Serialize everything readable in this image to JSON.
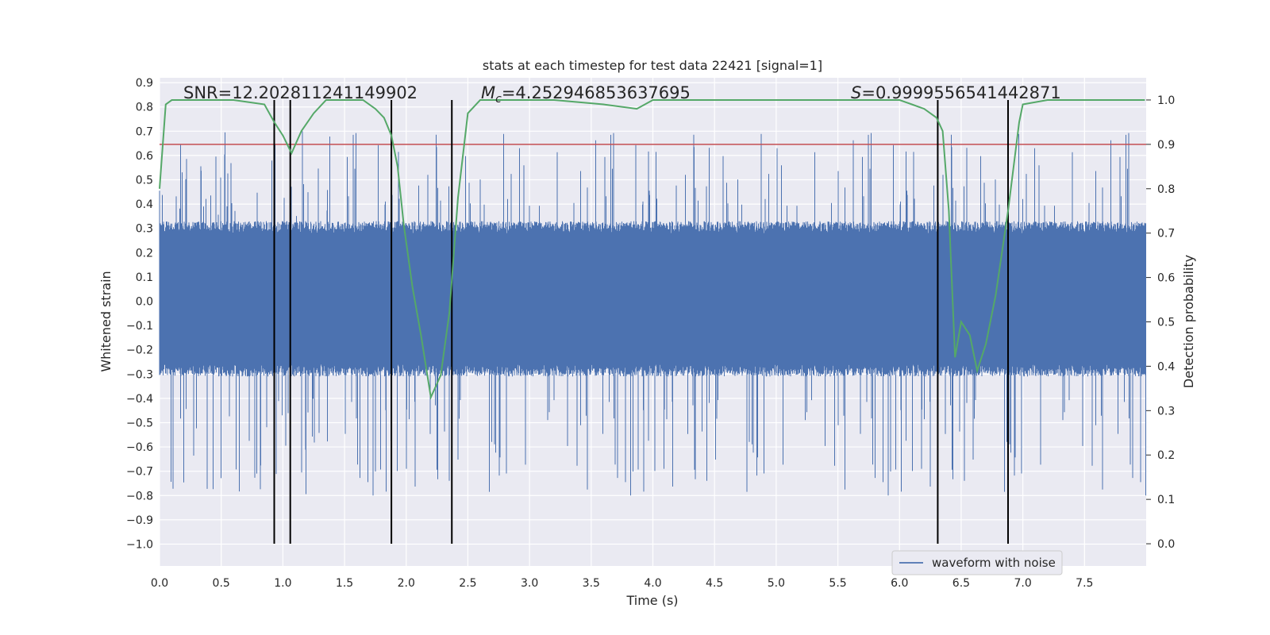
{
  "chart_data": {
    "type": "line",
    "title": "stats at each timestep for test data 22421 [signal=1]",
    "xlabel": "Time (s)",
    "ylabel": "Whitened strain",
    "y2label": "Detection probability",
    "xlim": [
      0.0,
      8.0
    ],
    "ylim": [
      -1.09,
      0.92
    ],
    "y2lim": [
      -0.05,
      1.05
    ],
    "grid": true,
    "xticks": [
      "0.0",
      "0.5",
      "1.0",
      "1.5",
      "2.0",
      "2.5",
      "3.0",
      "3.5",
      "4.0",
      "4.5",
      "5.0",
      "5.5",
      "6.0",
      "6.5",
      "7.0",
      "7.5"
    ],
    "yticks": [
      "0.9",
      "0.8",
      "0.7",
      "0.6",
      "0.5",
      "0.4",
      "0.3",
      "0.2",
      "0.1",
      "0.0",
      "−0.1",
      "−0.2",
      "−0.3",
      "−0.4",
      "−0.5",
      "−0.6",
      "−0.7",
      "−0.8",
      "−0.9",
      "−1.0"
    ],
    "y2ticks": [
      "1.0",
      "0.9",
      "0.8",
      "0.7",
      "0.6",
      "0.5",
      "0.4",
      "0.3",
      "0.2",
      "0.1",
      "0.0"
    ],
    "annotations": {
      "snr": "SNR=12.202811241149902",
      "mc_symbol": "M",
      "mc_sub": "c",
      "mc_value": "=4.252946853637695",
      "s_symbol": "S",
      "s_value": "=0.9999556541442871"
    },
    "legend": {
      "label": "waveform with noise",
      "position": "lower-right"
    },
    "series": [
      {
        "name": "waveform with noise",
        "axis": "left",
        "color": "#4c72b0",
        "style": "dense noise waveform",
        "range": [
          -1.0,
          0.85
        ]
      },
      {
        "axis": "right",
        "color": "#55a868",
        "x": [
          0.0,
          0.05,
          0.1,
          0.2,
          0.4,
          0.6,
          0.85,
          0.93,
          1.0,
          1.07,
          1.15,
          1.25,
          1.35,
          1.5,
          1.65,
          1.75,
          1.82,
          1.88,
          1.93,
          1.98,
          2.05,
          2.12,
          2.2,
          2.28,
          2.35,
          2.42,
          2.5,
          2.6,
          2.8,
          3.2,
          3.6,
          3.87,
          4.0,
          4.5,
          5.0,
          5.4,
          5.55,
          5.8,
          6.0,
          6.1,
          6.2,
          6.3,
          6.35,
          6.4,
          6.45,
          6.5,
          6.57,
          6.63,
          6.7,
          6.78,
          6.88,
          6.97,
          7.0,
          7.2,
          7.5,
          7.99
        ],
        "values": [
          0.8,
          0.99,
          1.0,
          1.0,
          1.0,
          1.0,
          0.99,
          0.95,
          0.92,
          0.88,
          0.93,
          0.97,
          1.0,
          1.0,
          1.0,
          0.98,
          0.96,
          0.92,
          0.85,
          0.72,
          0.58,
          0.47,
          0.33,
          0.38,
          0.52,
          0.78,
          0.97,
          1.0,
          1.0,
          1.0,
          0.99,
          0.98,
          1.0,
          1.0,
          1.0,
          1.0,
          1.0,
          1.0,
          1.0,
          0.99,
          0.98,
          0.96,
          0.93,
          0.75,
          0.42,
          0.5,
          0.47,
          0.39,
          0.45,
          0.56,
          0.75,
          0.95,
          0.99,
          1.0,
          1.0,
          1.0
        ]
      }
    ],
    "hlines": [
      {
        "axis": "right",
        "y": 0.9,
        "color": "#c44e52"
      }
    ],
    "vlines": [
      0.93,
      1.06,
      1.88,
      2.37,
      6.31,
      6.88
    ],
    "vline_color": "#000000"
  }
}
